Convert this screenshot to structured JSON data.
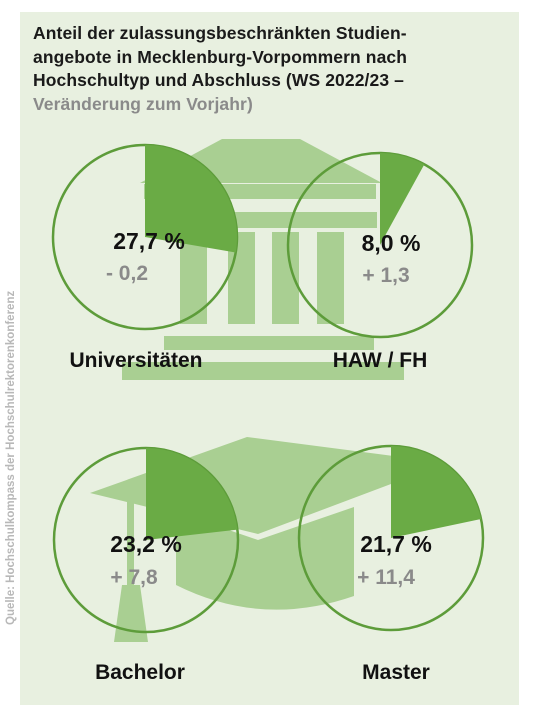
{
  "title_line1": "Anteil der zulassungsbeschränkten Studien-",
  "title_line2": "angebote in Mecklenburg-Vorpommern nach",
  "title_line3": "Hochschultyp und Abschluss (WS 2022/23 –",
  "subtitle": "Veränderung zum Vorjahr)",
  "source": "Quelle: Hochschulkompass der Hochschulrektorenkonferenz",
  "colors": {
    "background": "#e8f0e0",
    "pie_fill": "#6aab45",
    "pie_stroke": "#5d9c3a",
    "icon": "#a9cf92",
    "value_text": "#111111",
    "change_text": "#8a8a8a"
  },
  "icons": [
    "university-building-icon",
    "graduation-cap-icon"
  ],
  "chart_data": {
    "type": "pie",
    "unit": "%",
    "items": [
      {
        "label": "Universitäten",
        "value": 27.7,
        "value_label": "27,7 %",
        "change": -0.2,
        "change_label": "- 0,2"
      },
      {
        "label": "HAW / FH",
        "value": 8.0,
        "value_label": "8,0 %",
        "change": 1.3,
        "change_label": "+ 1,3"
      },
      {
        "label": "Bachelor",
        "value": 23.2,
        "value_label": "23,2 %",
        "change": 7.8,
        "change_label": "+ 7,8"
      },
      {
        "label": "Master",
        "value": 21.7,
        "value_label": "21,7 %",
        "change": 11.4,
        "change_label": "+ 11,4"
      }
    ]
  }
}
